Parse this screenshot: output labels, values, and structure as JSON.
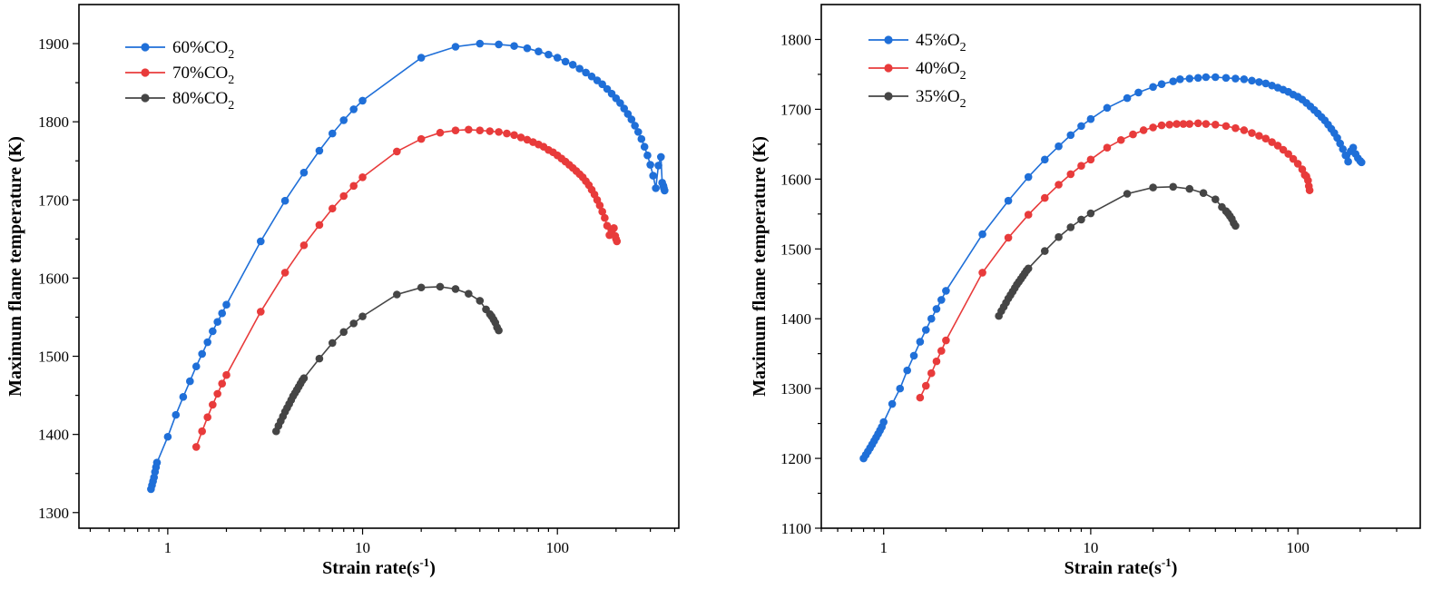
{
  "chart_data": [
    {
      "type": "line",
      "xscale": "log",
      "xlabel": "Strain rate(s",
      "xlabel_sup": "-1",
      "xlabel_end": ")",
      "ylabel": "Maximum flame temperature (K)",
      "xlim": [
        0.35,
        420
      ],
      "ylim": [
        1280,
        1950
      ],
      "xticks": [
        1,
        10,
        100
      ],
      "xtick_labels": [
        "1",
        "10",
        "100"
      ],
      "yticks": [
        1300,
        1400,
        1500,
        1600,
        1700,
        1800,
        1900
      ],
      "ytick_labels": [
        "1300",
        "1400",
        "1500",
        "1600",
        "1700",
        "1800",
        "1900"
      ],
      "legend_position": "top-left",
      "series": [
        {
          "name": "60%CO",
          "name_sub": "2",
          "color": "#1f6fd8",
          "x": [
            0.82,
            0.83,
            0.84,
            0.85,
            0.86,
            0.87,
            0.88,
            1.0,
            1.1,
            1.2,
            1.3,
            1.4,
            1.5,
            1.6,
            1.7,
            1.8,
            1.9,
            2,
            3,
            4,
            5,
            6,
            7,
            8,
            9,
            10,
            20,
            30,
            40,
            50,
            60,
            70,
            80,
            90,
            100,
            110,
            120,
            130,
            140,
            150,
            160,
            170,
            180,
            190,
            200,
            210,
            220,
            230,
            240,
            250,
            260,
            270,
            280,
            290,
            300,
            310,
            320,
            330,
            340,
            345,
            350,
            352,
            355
          ],
          "y": [
            1330,
            1335,
            1340,
            1345,
            1352,
            1358,
            1364,
            1397,
            1425,
            1448,
            1468,
            1487,
            1503,
            1518,
            1532,
            1544,
            1555,
            1566,
            1647,
            1699,
            1735,
            1763,
            1785,
            1802,
            1816,
            1827,
            1882,
            1896,
            1900,
            1899,
            1897,
            1894,
            1890,
            1886,
            1882,
            1877,
            1873,
            1868,
            1863,
            1858,
            1853,
            1848,
            1842,
            1836,
            1830,
            1824,
            1817,
            1810,
            1803,
            1795,
            1787,
            1778,
            1768,
            1757,
            1745,
            1731,
            1715,
            1744,
            1755,
            1722,
            1718,
            1715,
            1712
          ]
        },
        {
          "name": "70%CO",
          "name_sub": "2",
          "color": "#e83b3b",
          "x": [
            1.4,
            1.5,
            1.6,
            1.7,
            1.8,
            1.9,
            2,
            3,
            4,
            5,
            6,
            7,
            8,
            9,
            10,
            15,
            20,
            25,
            30,
            35,
            40,
            45,
            50,
            55,
            60,
            65,
            70,
            75,
            80,
            85,
            90,
            95,
            100,
            105,
            110,
            115,
            120,
            125,
            130,
            135,
            140,
            145,
            150,
            155,
            160,
            165,
            170,
            175,
            180,
            185,
            190,
            195,
            198,
            200,
            202
          ],
          "y": [
            1384,
            1404,
            1422,
            1438,
            1452,
            1465,
            1476,
            1557,
            1607,
            1642,
            1668,
            1689,
            1705,
            1718,
            1729,
            1762,
            1778,
            1786,
            1789,
            1790,
            1789,
            1788,
            1787,
            1785,
            1783,
            1780,
            1777,
            1774,
            1771,
            1768,
            1764,
            1761,
            1757,
            1753,
            1749,
            1745,
            1741,
            1737,
            1733,
            1729,
            1724,
            1719,
            1713,
            1707,
            1700,
            1693,
            1685,
            1677,
            1667,
            1655,
            1660,
            1664,
            1654,
            1650,
            1647
          ]
        },
        {
          "name": "80%CO",
          "name_sub": "2",
          "color": "#454545",
          "x": [
            3.6,
            3.7,
            3.8,
            3.9,
            4.0,
            4.1,
            4.2,
            4.3,
            4.4,
            4.5,
            4.6,
            4.7,
            4.8,
            4.9,
            5.0,
            6,
            7,
            8,
            9,
            10,
            15,
            20,
            25,
            30,
            35,
            40,
            43,
            45,
            46,
            47,
            48,
            49,
            50
          ],
          "y": [
            1404,
            1411,
            1417,
            1423,
            1429,
            1434,
            1439,
            1444,
            1449,
            1453,
            1457,
            1461,
            1465,
            1469,
            1472,
            1497,
            1517,
            1531,
            1542,
            1551,
            1579,
            1588,
            1589,
            1586,
            1580,
            1571,
            1560,
            1554,
            1551,
            1547,
            1543,
            1537,
            1533
          ]
        }
      ]
    },
    {
      "type": "line",
      "xscale": "log",
      "xlabel": "Strain rate(s",
      "xlabel_sup": "-1",
      "xlabel_end": ")",
      "ylabel": "Maximum flame temperature (K)",
      "xlim": [
        0.5,
        390
      ],
      "ylim": [
        1100,
        1850
      ],
      "xticks": [
        1,
        10,
        100
      ],
      "xtick_labels": [
        "1",
        "10",
        "100"
      ],
      "yticks": [
        1100,
        1200,
        1300,
        1400,
        1500,
        1600,
        1700,
        1800
      ],
      "ytick_labels": [
        "1100",
        "1200",
        "1300",
        "1400",
        "1500",
        "1600",
        "1700",
        "1800"
      ],
      "legend_position": "top-left",
      "series": [
        {
          "name": "45%O",
          "name_sub": "2",
          "color": "#1f6fd8",
          "x": [
            0.8,
            0.82,
            0.84,
            0.86,
            0.88,
            0.9,
            0.92,
            0.94,
            0.96,
            0.98,
            1.0,
            1.1,
            1.2,
            1.3,
            1.4,
            1.5,
            1.6,
            1.7,
            1.8,
            1.9,
            2,
            3,
            4,
            5,
            6,
            7,
            8,
            9,
            10,
            12,
            15,
            17,
            20,
            22,
            25,
            27,
            30,
            33,
            36,
            40,
            45,
            50,
            55,
            60,
            65,
            70,
            75,
            80,
            85,
            90,
            95,
            100,
            105,
            110,
            115,
            120,
            125,
            130,
            135,
            140,
            145,
            150,
            155,
            160,
            165,
            170,
            175,
            180,
            185,
            190,
            195,
            200,
            203
          ],
          "y": [
            1200,
            1205,
            1210,
            1215,
            1220,
            1225,
            1230,
            1235,
            1240,
            1245,
            1252,
            1278,
            1300,
            1326,
            1347,
            1367,
            1384,
            1400,
            1414,
            1427,
            1440,
            1521,
            1569,
            1603,
            1628,
            1647,
            1663,
            1676,
            1686,
            1702,
            1716,
            1724,
            1732,
            1736,
            1740,
            1743,
            1744,
            1745,
            1746,
            1746,
            1745,
            1744,
            1743,
            1741,
            1739,
            1737,
            1734,
            1731,
            1728,
            1725,
            1721,
            1718,
            1714,
            1709,
            1704,
            1699,
            1694,
            1689,
            1684,
            1678,
            1672,
            1666,
            1659,
            1651,
            1643,
            1634,
            1625,
            1640,
            1645,
            1636,
            1630,
            1626,
            1624
          ]
        },
        {
          "name": "40%O",
          "name_sub": "2",
          "color": "#e83b3b",
          "x": [
            1.5,
            1.6,
            1.7,
            1.8,
            1.9,
            2,
            3,
            4,
            5,
            6,
            7,
            8,
            9,
            10,
            12,
            14,
            16,
            18,
            20,
            22,
            24,
            26,
            28,
            30,
            33,
            36,
            40,
            45,
            50,
            55,
            60,
            65,
            70,
            75,
            80,
            85,
            90,
            95,
            100,
            105,
            108,
            110,
            112,
            113,
            114
          ],
          "y": [
            1287,
            1304,
            1322,
            1339,
            1354,
            1369,
            1466,
            1516,
            1549,
            1573,
            1592,
            1607,
            1619,
            1628,
            1645,
            1656,
            1664,
            1670,
            1674,
            1677,
            1678,
            1679,
            1679,
            1679,
            1680,
            1679,
            1678,
            1676,
            1673,
            1670,
            1666,
            1662,
            1658,
            1653,
            1648,
            1642,
            1636,
            1629,
            1622,
            1614,
            1606,
            1604,
            1598,
            1590,
            1584
          ]
        },
        {
          "name": "35%O",
          "name_sub": "2",
          "color": "#454545",
          "x": [
            3.6,
            3.7,
            3.8,
            3.9,
            4.0,
            4.1,
            4.2,
            4.3,
            4.4,
            4.5,
            4.6,
            4.7,
            4.8,
            4.9,
            5.0,
            6,
            7,
            8,
            9,
            10,
            15,
            20,
            25,
            30,
            35,
            40,
            43,
            45,
            46,
            47,
            48,
            49,
            50
          ],
          "y": [
            1404,
            1411,
            1417,
            1423,
            1429,
            1434,
            1439,
            1444,
            1449,
            1453,
            1457,
            1461,
            1465,
            1469,
            1472,
            1497,
            1517,
            1531,
            1542,
            1551,
            1579,
            1588,
            1589,
            1586,
            1580,
            1571,
            1560,
            1554,
            1551,
            1547,
            1543,
            1537,
            1533
          ]
        }
      ]
    }
  ]
}
